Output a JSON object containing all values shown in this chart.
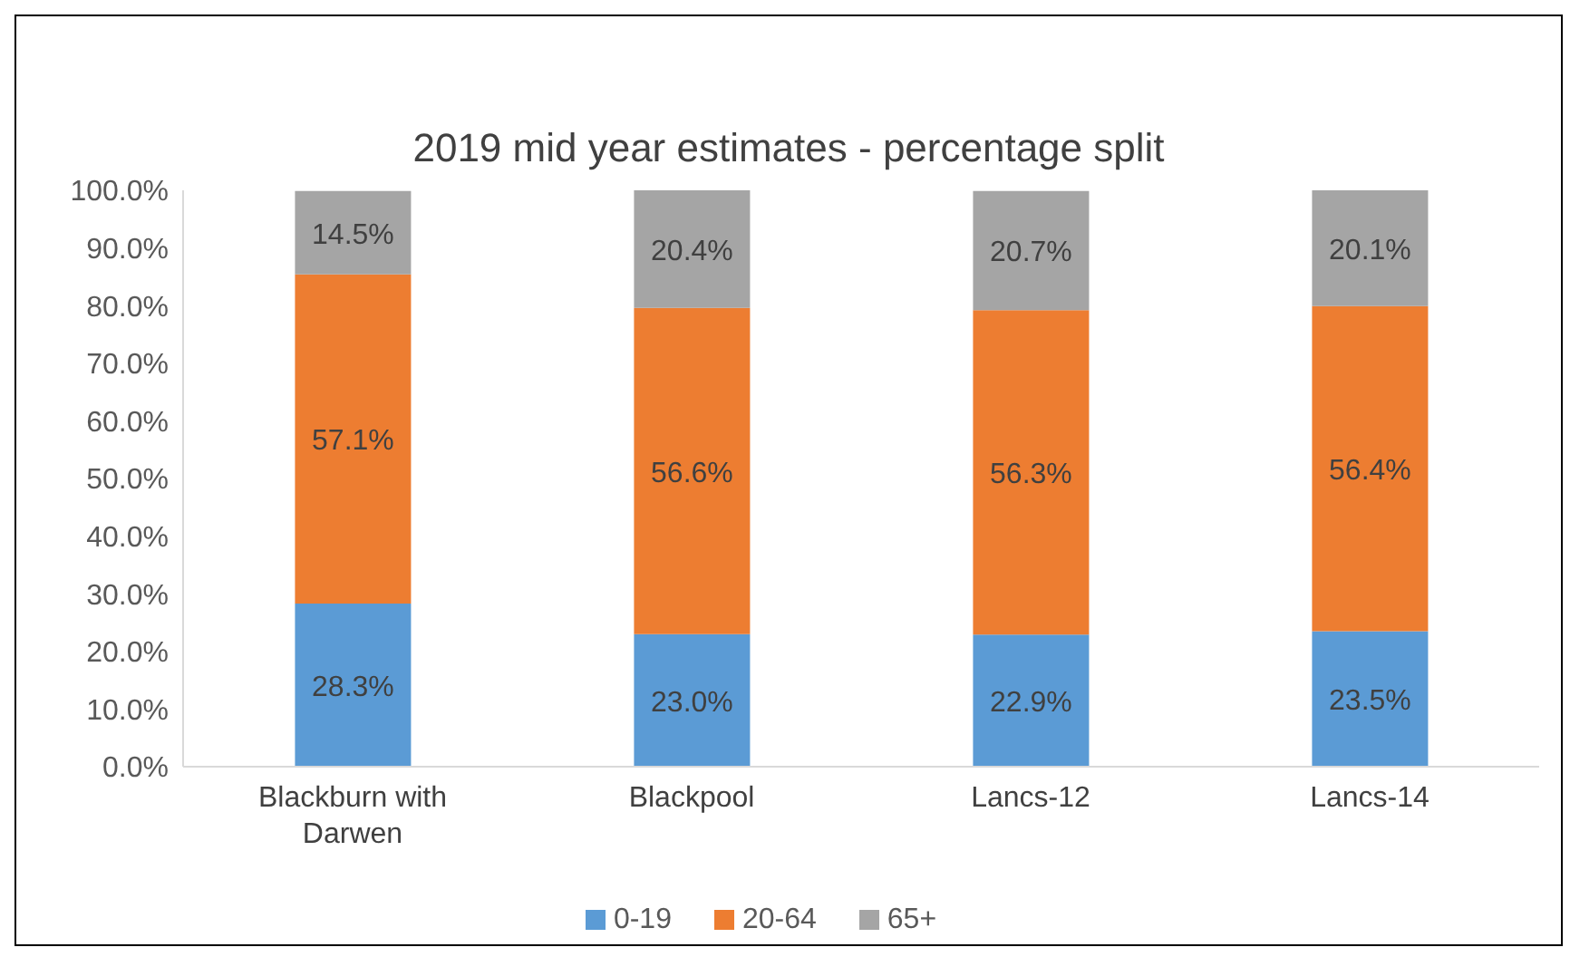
{
  "chart_data": {
    "type": "bar",
    "title": "2019 mid year estimates - percentage split",
    "categories": [
      "Blackburn with Darwen",
      "Blackpool",
      "Lancs-12",
      "Lancs-14"
    ],
    "stacked": true,
    "series": [
      {
        "name": "0-19",
        "color": "#5b9bd5",
        "values": [
          28.3,
          23.0,
          22.9,
          23.5
        ],
        "value_labels": [
          "28.3%",
          "23.0%",
          "22.9%",
          "23.5%"
        ]
      },
      {
        "name": "20-64",
        "color": "#ed7d31",
        "values": [
          57.1,
          56.6,
          56.3,
          56.4
        ],
        "value_labels": [
          "57.1%",
          "56.6%",
          "56.3%",
          "56.4%"
        ]
      },
      {
        "name": "65+",
        "color": "#a5a5a5",
        "values": [
          14.5,
          20.4,
          20.7,
          20.1
        ],
        "value_labels": [
          "14.5%",
          "20.4%",
          "20.7%",
          "20.1%"
        ]
      }
    ],
    "ylim": [
      0,
      100
    ],
    "yticks": [
      {
        "value": 0,
        "label": "0.0%"
      },
      {
        "value": 10,
        "label": "10.0%"
      },
      {
        "value": 20,
        "label": "20.0%"
      },
      {
        "value": 30,
        "label": "30.0%"
      },
      {
        "value": 40,
        "label": "40.0%"
      },
      {
        "value": 50,
        "label": "50.0%"
      },
      {
        "value": 60,
        "label": "60.0%"
      },
      {
        "value": 70,
        "label": "70.0%"
      },
      {
        "value": 80,
        "label": "80.0%"
      },
      {
        "value": 90,
        "label": "90.0%"
      },
      {
        "value": 100,
        "label": "100.0%"
      }
    ],
    "grid": false,
    "legend": "bottom"
  }
}
